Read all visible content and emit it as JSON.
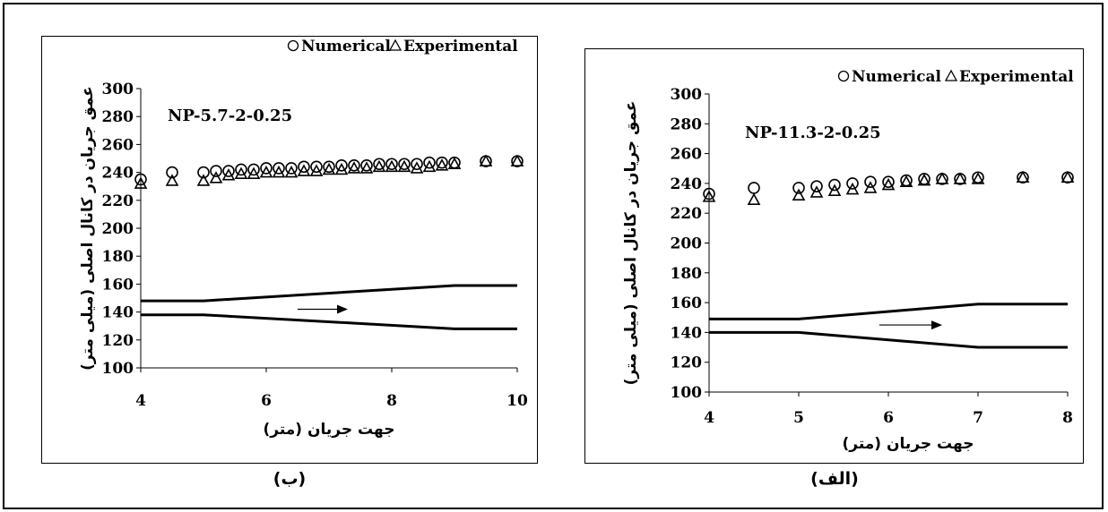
{
  "panels": [
    {
      "caption": "(ب)",
      "chart_data": {
        "type": "scatter",
        "label": "NP-5.7-2-0.25",
        "xlabel": "جهت جریان (متر)",
        "ylabel": "عمق جریان در کانال اصلی (میلی متر)",
        "xlim": [
          4,
          10
        ],
        "ylim": [
          100,
          300
        ],
        "xticks": [
          4,
          6,
          8,
          10
        ],
        "yticks": [
          100,
          120,
          140,
          160,
          180,
          200,
          220,
          240,
          260,
          280,
          300
        ],
        "legend": [
          "Numerical",
          "Experimental"
        ],
        "series": [
          {
            "name": "Numerical",
            "marker": "circle",
            "x": [
              4,
              4.5,
              5,
              5.2,
              5.4,
              5.6,
              5.8,
              6,
              6.2,
              6.4,
              6.6,
              6.8,
              7,
              7.2,
              7.4,
              7.6,
              7.8,
              8,
              8.2,
              8.4,
              8.6,
              8.8,
              9,
              9.5,
              10
            ],
            "y": [
              235,
              240,
              240,
              241,
              241,
              242,
              242,
              243,
              243,
              243,
              244,
              244,
              244,
              245,
              245,
              245,
              246,
              246,
              246,
              246,
              247,
              247,
              247,
              248,
              248
            ]
          },
          {
            "name": "Experimental",
            "marker": "triangle",
            "x": [
              4,
              4.5,
              5,
              5.2,
              5.4,
              5.6,
              5.8,
              6,
              6.2,
              6.4,
              6.6,
              6.8,
              7,
              7.2,
              7.4,
              7.6,
              7.8,
              8,
              8.2,
              8.4,
              8.6,
              8.8,
              9,
              9.5,
              10
            ],
            "y": [
              232,
              234,
              234,
              236,
              238,
              239,
              239,
              240,
              240,
              240,
              241,
              241,
              242,
              242,
              243,
              243,
              244,
              244,
              244,
              243,
              244,
              245,
              246,
              248,
              248
            ]
          }
        ],
        "channel_lines": [
          {
            "x": [
              4,
              5,
              9,
              10
            ],
            "y": [
              148,
              148,
              159,
              159
            ]
          },
          {
            "x": [
              4,
              5,
              9,
              10
            ],
            "y": [
              138,
              138,
              128,
              128
            ]
          }
        ],
        "arrow": {
          "x": [
            6.5,
            7.3
          ],
          "y": 142
        }
      }
    },
    {
      "caption": "(الف)",
      "chart_data": {
        "type": "scatter",
        "label": "NP-11.3-2-0.25",
        "xlabel": "جهت جریان (متر)",
        "ylabel": "عمق جریان در کانال اصلی (میلی متر)",
        "xlim": [
          4,
          8
        ],
        "ylim": [
          100,
          300
        ],
        "xticks": [
          4,
          5,
          6,
          7,
          8
        ],
        "yticks": [
          100,
          120,
          140,
          160,
          180,
          200,
          220,
          240,
          260,
          280,
          300
        ],
        "legend": [
          "Numerical",
          "Experimental"
        ],
        "series": [
          {
            "name": "Numerical",
            "marker": "circle",
            "x": [
              4,
              4.5,
              5,
              5.2,
              5.4,
              5.6,
              5.8,
              6,
              6.2,
              6.4,
              6.6,
              6.8,
              7,
              7.5,
              8
            ],
            "y": [
              233,
              237,
              237,
              238,
              239,
              240,
              241,
              241,
              242,
              243,
              243,
              243,
              244,
              244,
              244
            ]
          },
          {
            "name": "Experimental",
            "marker": "triangle",
            "x": [
              4,
              4.5,
              5,
              5.2,
              5.4,
              5.6,
              5.8,
              6,
              6.2,
              6.4,
              6.6,
              6.8,
              7,
              7.5,
              8
            ],
            "y": [
              231,
              229,
              232,
              234,
              235,
              236,
              237,
              239,
              241,
              242,
              243,
              243,
              243,
              244,
              244
            ]
          }
        ],
        "channel_lines": [
          {
            "x": [
              4,
              5,
              7,
              8
            ],
            "y": [
              149,
              149,
              159,
              159
            ]
          },
          {
            "x": [
              4,
              5,
              7,
              8
            ],
            "y": [
              140,
              140,
              130,
              130
            ]
          }
        ],
        "arrow": {
          "x": [
            5.9,
            6.6
          ],
          "y": 145
        }
      }
    }
  ]
}
